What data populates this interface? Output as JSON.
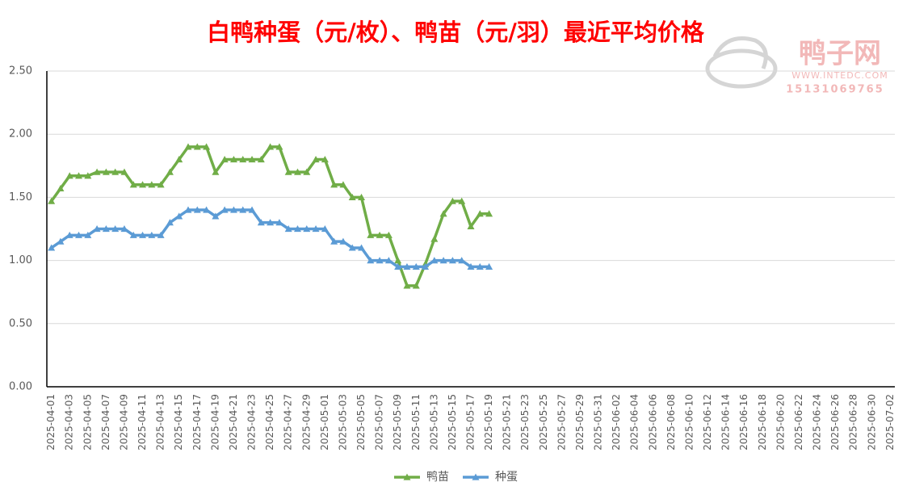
{
  "chart_data": {
    "type": "line",
    "title": "白鸭种蛋（元/枚）、鸭苗（元/羽）最近平均价格",
    "watermark": {
      "name": "鸭子网",
      "site": "WWW.INTEDC.COM",
      "phone": "15131069765"
    },
    "categories": [
      "2025-04-01",
      null,
      "2025-04-03",
      null,
      "2025-04-05",
      null,
      "2025-04-07",
      null,
      "2025-04-09",
      null,
      "2025-04-11",
      null,
      "2025-04-13",
      null,
      "2025-04-15",
      null,
      "2025-04-17",
      null,
      "2025-04-19",
      null,
      "2025-04-21",
      null,
      "2025-04-23",
      null,
      "2025-04-25",
      null,
      "2025-04-27",
      null,
      "2025-04-29",
      null,
      "2025-05-01",
      null,
      "2025-05-03",
      null,
      "2025-05-05",
      null,
      "2025-05-07",
      null,
      "2025-05-09",
      null,
      "2025-05-11",
      null,
      "2025-05-13",
      null,
      "2025-05-15",
      null,
      "2025-05-17",
      null,
      "2025-05-19",
      null,
      "2025-05-21",
      null,
      "2025-05-23",
      null,
      "2025-05-25",
      null,
      "2025-05-27",
      null,
      "2025-05-29",
      null,
      "2025-05-31",
      null,
      "2025-06-02",
      null,
      "2025-06-04",
      null,
      "2025-06-06",
      null,
      "2025-06-08",
      null,
      "2025-06-10",
      null,
      "2025-06-12",
      null,
      "2025-06-14",
      null,
      "2025-06-16",
      null,
      "2025-06-18",
      null,
      "2025-06-20",
      null,
      "2025-06-22",
      null,
      "2025-06-24",
      null,
      "2025-06-26",
      null,
      "2025-06-28",
      null,
      "2025-06-30",
      null,
      "2025-07-02"
    ],
    "series": [
      {
        "name": "鸭苗",
        "color": "#70ad47",
        "values": [
          1.47,
          1.57,
          1.67,
          1.67,
          1.67,
          1.7,
          1.7,
          1.7,
          1.7,
          1.6,
          1.6,
          1.6,
          1.6,
          1.7,
          1.8,
          1.9,
          1.9,
          1.9,
          1.7,
          1.8,
          1.8,
          1.8,
          1.8,
          1.8,
          1.9,
          1.9,
          1.7,
          1.7,
          1.7,
          1.8,
          1.8,
          1.6,
          1.6,
          1.5,
          1.5,
          1.2,
          1.2,
          1.2,
          1.0,
          0.8,
          0.8,
          0.97,
          1.17,
          1.37,
          1.47,
          1.47,
          1.27,
          1.37,
          1.37,
          null,
          null,
          null,
          null,
          null,
          null,
          null,
          null,
          null,
          null,
          null,
          null,
          null,
          null,
          null,
          null,
          null,
          null,
          null,
          null,
          null,
          null,
          null,
          null,
          null,
          null,
          null,
          null,
          null,
          null,
          null,
          null,
          null,
          null,
          null,
          null,
          null,
          null,
          null,
          null,
          null,
          null,
          null,
          null
        ]
      },
      {
        "name": "种蛋",
        "color": "#5b9bd5",
        "values": [
          1.1,
          1.15,
          1.2,
          1.2,
          1.2,
          1.25,
          1.25,
          1.25,
          1.25,
          1.2,
          1.2,
          1.2,
          1.2,
          1.3,
          1.35,
          1.4,
          1.4,
          1.4,
          1.35,
          1.4,
          1.4,
          1.4,
          1.4,
          1.3,
          1.3,
          1.3,
          1.25,
          1.25,
          1.25,
          1.25,
          1.25,
          1.15,
          1.15,
          1.1,
          1.1,
          1.0,
          1.0,
          1.0,
          0.95,
          0.95,
          0.95,
          0.95,
          1.0,
          1.0,
          1.0,
          1.0,
          0.95,
          0.95,
          0.95,
          null,
          null,
          null,
          null,
          null,
          null,
          null,
          null,
          null,
          null,
          null,
          null,
          null,
          null,
          null,
          null,
          null,
          null,
          null,
          null,
          null,
          null,
          null,
          null,
          null,
          null,
          null,
          null,
          null,
          null,
          null,
          null,
          null,
          null,
          null,
          null,
          null,
          null,
          null,
          null,
          null,
          null,
          null,
          null
        ]
      }
    ],
    "ylim": [
      0,
      2.5
    ],
    "yticks": [
      {
        "value": 0,
        "label": "0.00"
      },
      {
        "value": 0.5,
        "label": "0.50"
      },
      {
        "value": 1,
        "label": "1.00"
      },
      {
        "value": 1.5,
        "label": "1.50"
      },
      {
        "value": 2,
        "label": "2.00"
      },
      {
        "value": 2.5,
        "label": "2.50"
      }
    ],
    "grid": true,
    "legend": "bottom"
  }
}
